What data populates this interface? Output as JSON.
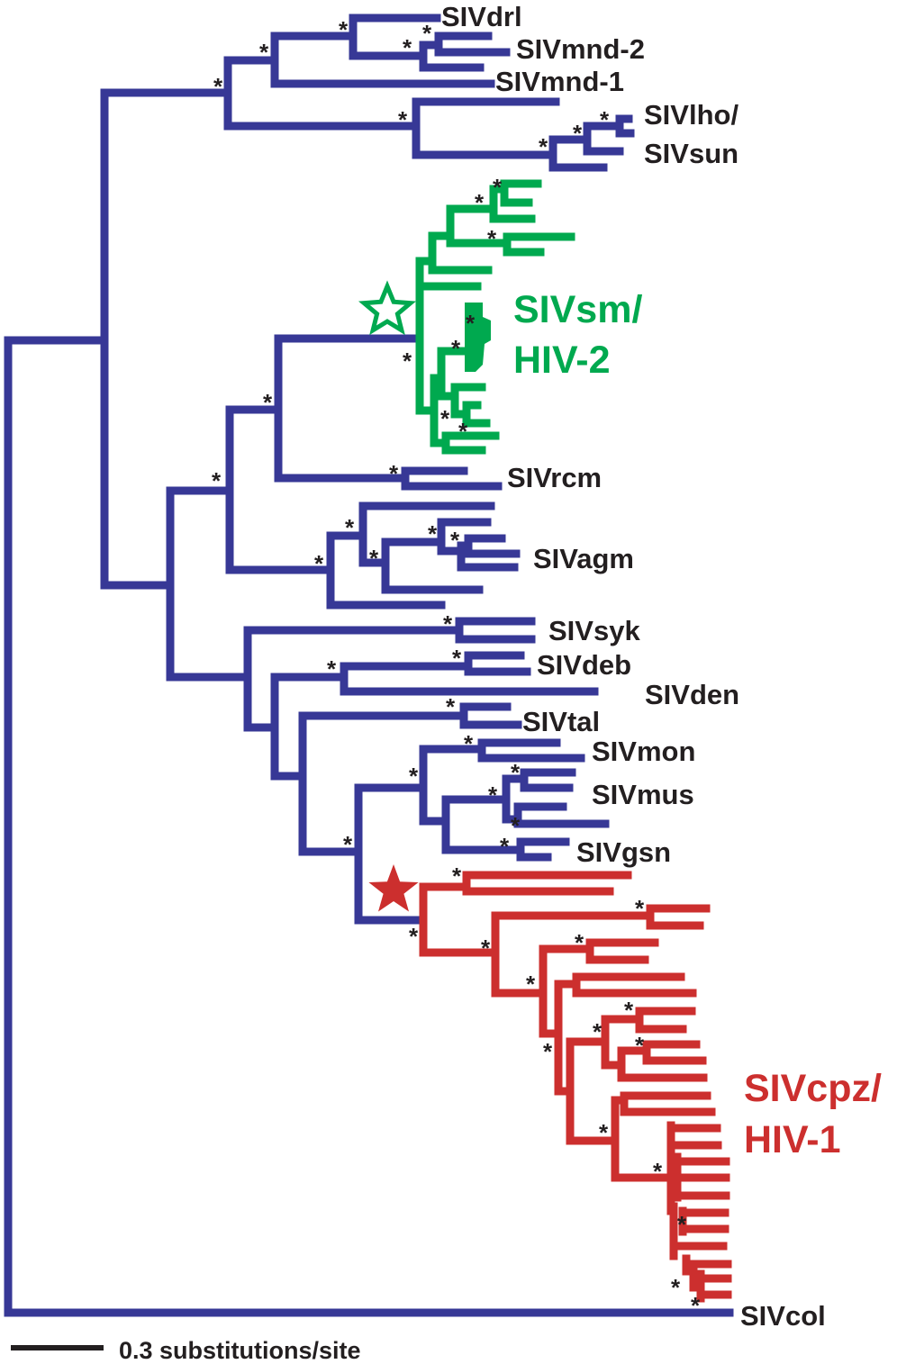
{
  "colors": {
    "other_siv": "#373896",
    "sivsm_hiv2": "#00a94f",
    "sivcpz_hiv1": "#cc2f2e",
    "text": "#231f20"
  },
  "taxa": {
    "sivdrl": "SIVdrl",
    "sivmnd2": "SIVmnd-2",
    "sivmnd1": "SIVmnd-1",
    "sivlho": "SIVlho/",
    "sivsun": "SIVsun",
    "sivrcm": "SIVrcm",
    "sivagm": "SIVagm",
    "sivsyk": "SIVsyk",
    "sivdeb": "SIVdeb",
    "sivden": "SIVden",
    "sivtal": "SIVtal",
    "sivmon": "SIVmon",
    "sivmus": "SIVmus",
    "sivgsn": "SIVgsn",
    "sivcol": "SIVcol"
  },
  "clades": {
    "green_line1": "SIVsm/",
    "green_line2": "HIV-2",
    "red_line1": "SIVcpz/",
    "red_line2": "HIV-1"
  },
  "markers": {
    "support_symbol": "*",
    "hiv2_origin_icon": "star-outline",
    "hiv1_origin_icon": "star-filled"
  },
  "scale_bar": {
    "label": "0.3 substitutions/site",
    "value": 0.3
  }
}
